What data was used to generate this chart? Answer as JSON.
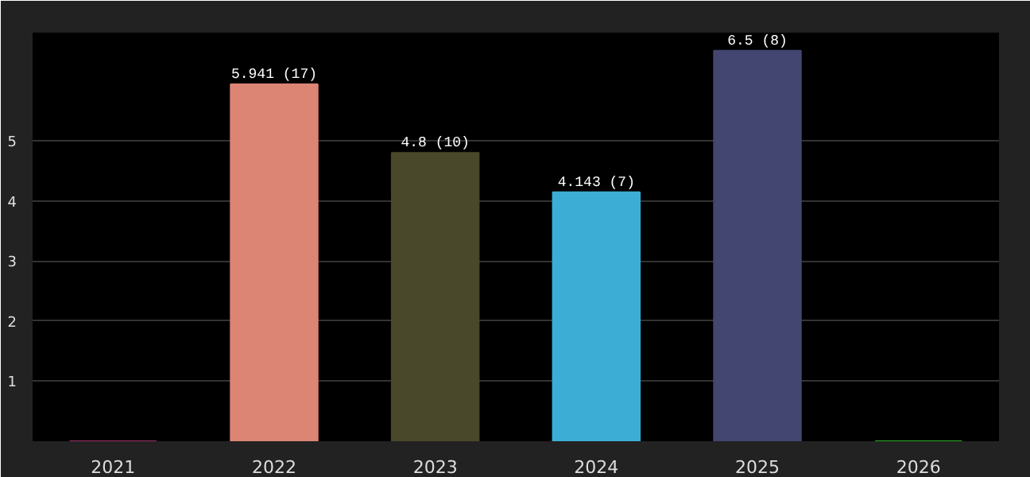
{
  "chart_data": {
    "type": "bar",
    "categories": [
      "2021",
      "2022",
      "2023",
      "2024",
      "2025",
      "2026"
    ],
    "values": [
      0,
      5.941,
      4.8,
      4.143,
      6.5,
      0
    ],
    "colors": [
      "#a0306a",
      "#dc8574",
      "#4a482b",
      "#3caed6",
      "#424670",
      "#22b022"
    ],
    "value_labels": [
      null,
      "5.941 (17)",
      "4.8 (10)",
      "4.143 (7)",
      "6.5 (8)",
      null
    ],
    "ylim": [
      0,
      6.8
    ],
    "yticks": [
      1,
      2,
      3,
      4,
      5
    ],
    "grid": "y"
  }
}
